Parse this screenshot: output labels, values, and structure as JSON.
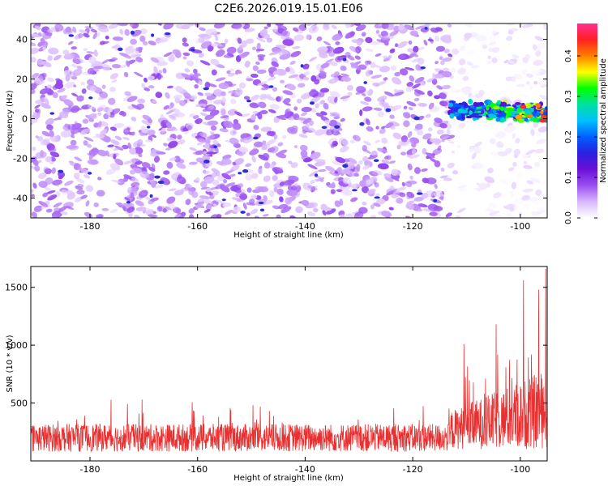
{
  "figure_title": "C2E6.2026.019.15.01.E06",
  "chart_data": [
    {
      "type": "heatmap",
      "title": "C2E6.2026.019.15.01.E06",
      "xlabel": "Height of straight line (km)",
      "ylabel": "Frequency (Hz)",
      "xlim": [
        -191,
        -95
      ],
      "ylim": [
        -50,
        48
      ],
      "x_ticks": [
        -180,
        -160,
        -140,
        -120,
        -100
      ],
      "y_ticks": [
        -40,
        -20,
        0,
        20,
        40
      ],
      "colorbar": {
        "label": "Normalized spectral amplitude",
        "range": [
          0,
          0.48
        ],
        "ticks": [
          0.0,
          0.1,
          0.2,
          0.3,
          0.4
        ],
        "colors": [
          "#ffffff",
          "#d9b8ff",
          "#9a50f0",
          "#6a0fd8",
          "#2a20e0",
          "#0060ff",
          "#00c0ff",
          "#00e0a0",
          "#00ff00",
          "#ffff00",
          "#ff8000",
          "#ff2020",
          "#ff3090"
        ]
      },
      "noise_region": {
        "x": [
          -191,
          -113
        ],
        "amplitude": [
          0.02,
          0.09
        ]
      },
      "quiet_region": {
        "x": [
          -113,
          -95
        ],
        "amplitude": [
          0.0,
          0.03
        ]
      },
      "signal_band": {
        "x": [
          -113,
          -95
        ],
        "frequency_hz": [
          3,
          7
        ],
        "amplitude_range": [
          0.12,
          0.45
        ],
        "peak": {
          "x": -99.5,
          "frequency_hz": 6,
          "amplitude": 0.45
        }
      }
    },
    {
      "type": "line",
      "xlabel": "Height of straight line (km)",
      "ylabel": "SNR (10 * v/v)",
      "xlim": [
        -191,
        -95
      ],
      "ylim": [
        0,
        1680
      ],
      "x_ticks": [
        -180,
        -160,
        -140,
        -120,
        -100
      ],
      "y_ticks": [
        500,
        1000,
        1500
      ],
      "color": "#e83030",
      "baseline": {
        "x": [
          -191,
          -113
        ],
        "typical_range": [
          80,
          320
        ],
        "spikes_to": 530
      },
      "rising": {
        "x": [
          -113,
          -95
        ],
        "typical_range": [
          100,
          700
        ]
      },
      "peaks": [
        {
          "x": -110.5,
          "value": 1010
        },
        {
          "x": -104.5,
          "value": 1180
        },
        {
          "x": -99.4,
          "value": 1560
        },
        {
          "x": -96.6,
          "value": 1480
        },
        {
          "x": -95.3,
          "value": 1660
        }
      ]
    }
  ]
}
